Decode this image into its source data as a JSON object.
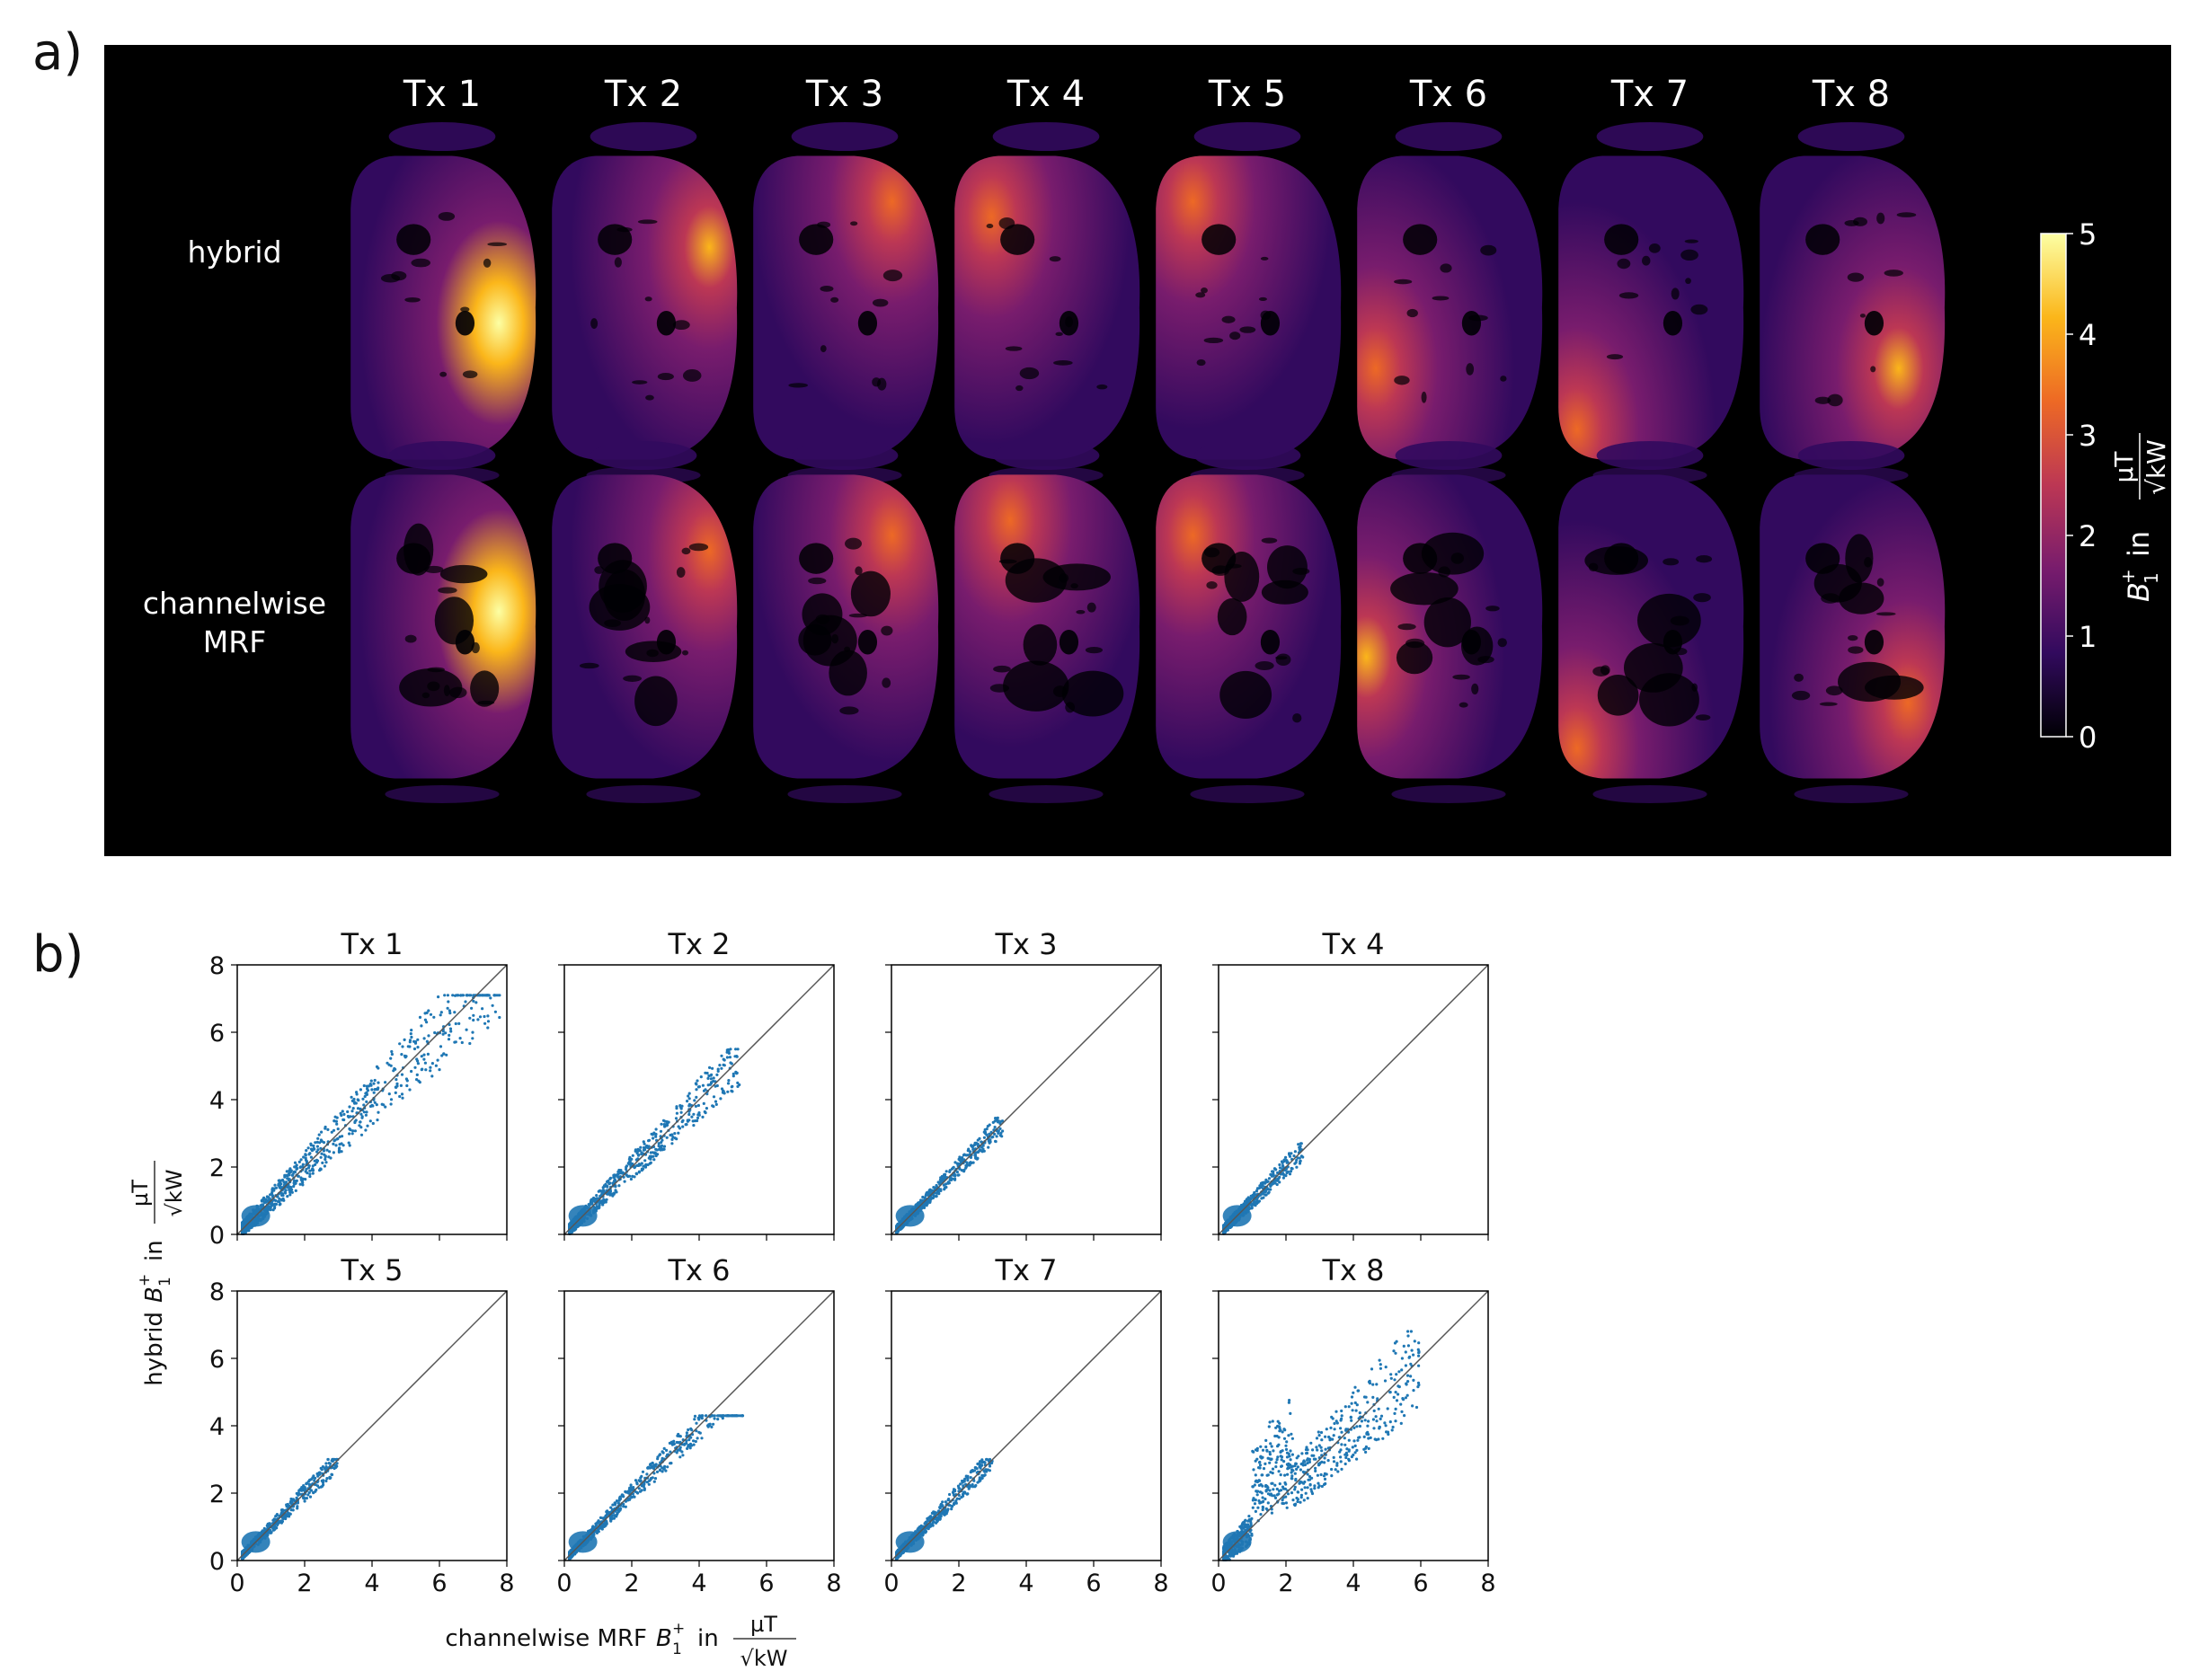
{
  "panel_a": {
    "label": "a)",
    "columns": [
      "Tx 1",
      "Tx 2",
      "Tx 3",
      "Tx 4",
      "Tx 5",
      "Tx 6",
      "Tx 7",
      "Tx 8"
    ],
    "rows": [
      {
        "line1": "hybrid",
        "line2": ""
      },
      {
        "line1": "channelwise",
        "line2": "MRF"
      }
    ],
    "colorbar": {
      "ticks": [
        "0",
        "1",
        "2",
        "3",
        "4",
        "5"
      ],
      "label_prefix": "B",
      "label_sub": "1",
      "label_sup": "+",
      "label_in": "in",
      "unit_num": "µT",
      "unit_den": "√kW",
      "range": [
        0,
        5
      ],
      "colormap": "inferno",
      "stops": [
        "#000004",
        "#320a5e",
        "#781c6d",
        "#bc3754",
        "#ed6925",
        "#fbb61a",
        "#fcffa4"
      ]
    },
    "maps": [
      {
        "row": 0,
        "col": 0,
        "hot": [
          0.8,
          0.55
        ],
        "level": 0.95
      },
      {
        "row": 0,
        "col": 1,
        "hot": [
          0.85,
          0.3
        ],
        "level": 0.7
      },
      {
        "row": 0,
        "col": 2,
        "hot": [
          0.75,
          0.15
        ],
        "level": 0.55
      },
      {
        "row": 0,
        "col": 3,
        "hot": [
          0.2,
          0.2
        ],
        "level": 0.45
      },
      {
        "row": 0,
        "col": 4,
        "hot": [
          0.2,
          0.15
        ],
        "level": 0.45
      },
      {
        "row": 0,
        "col": 5,
        "hot": [
          0.1,
          0.7
        ],
        "level": 0.55
      },
      {
        "row": 0,
        "col": 6,
        "hot": [
          0.1,
          0.9
        ],
        "level": 0.45
      },
      {
        "row": 0,
        "col": 7,
        "hot": [
          0.75,
          0.7
        ],
        "level": 0.6
      },
      {
        "row": 1,
        "col": 0,
        "hot": [
          0.8,
          0.45
        ],
        "level": 0.9
      },
      {
        "row": 1,
        "col": 1,
        "hot": [
          0.85,
          0.25
        ],
        "level": 0.55
      },
      {
        "row": 1,
        "col": 2,
        "hot": [
          0.75,
          0.2
        ],
        "level": 0.45
      },
      {
        "row": 1,
        "col": 3,
        "hot": [
          0.3,
          0.15
        ],
        "level": 0.45
      },
      {
        "row": 1,
        "col": 4,
        "hot": [
          0.2,
          0.2
        ],
        "level": 0.45
      },
      {
        "row": 1,
        "col": 5,
        "hot": [
          0.05,
          0.6
        ],
        "level": 0.6
      },
      {
        "row": 1,
        "col": 6,
        "hot": [
          0.1,
          0.9
        ],
        "level": 0.45
      },
      {
        "row": 1,
        "col": 7,
        "hot": [
          0.8,
          0.75
        ],
        "level": 0.45
      }
    ]
  },
  "panel_b": {
    "label": "b)",
    "ylabel_prefix": "hybrid",
    "xlabel_prefix": "channelwise MRF",
    "sym_B": "B",
    "sym_sub": "1",
    "sym_sup": "+",
    "sym_in": "in",
    "unit_num": "µT",
    "unit_den": "√kW",
    "tick_labels": [
      "0",
      "2",
      "4",
      "6",
      "8"
    ],
    "point_color": "#1f77b4",
    "chart_data": [
      {
        "type": "scatter",
        "title": "Tx 1",
        "xlim": [
          0,
          8
        ],
        "ylim": [
          0,
          8
        ],
        "xmax": 7.8,
        "ymax": 7.1,
        "spread": 0.45,
        "n": 900
      },
      {
        "type": "scatter",
        "title": "Tx 2",
        "xlim": [
          0,
          8
        ],
        "ylim": [
          0,
          8
        ],
        "xmax": 5.2,
        "ymax": 5.5,
        "spread": 0.35,
        "n": 700
      },
      {
        "type": "scatter",
        "title": "Tx 3",
        "xlim": [
          0,
          8
        ],
        "ylim": [
          0,
          8
        ],
        "xmax": 3.3,
        "ymax": 3.8,
        "spread": 0.25,
        "n": 600
      },
      {
        "type": "scatter",
        "title": "Tx 4",
        "xlim": [
          0,
          8
        ],
        "ylim": [
          0,
          8
        ],
        "xmax": 2.5,
        "ymax": 2.7,
        "spread": 0.3,
        "n": 500
      },
      {
        "type": "scatter",
        "title": "Tx 5",
        "xlim": [
          0,
          8
        ],
        "ylim": [
          0,
          8
        ],
        "xmax": 3.0,
        "ymax": 3.0,
        "spread": 0.25,
        "n": 600
      },
      {
        "type": "scatter",
        "title": "Tx 6",
        "xlim": [
          0,
          8
        ],
        "ylim": [
          0,
          8
        ],
        "xmax": 5.3,
        "ymax": 4.3,
        "spread": 0.25,
        "n": 650
      },
      {
        "type": "scatter",
        "title": "Tx 7",
        "xlim": [
          0,
          8
        ],
        "ylim": [
          0,
          8
        ],
        "xmax": 3.0,
        "ymax": 3.0,
        "spread": 0.25,
        "n": 550
      },
      {
        "type": "scatter",
        "title": "Tx 8",
        "xlim": [
          0,
          8
        ],
        "ylim": [
          0,
          8
        ],
        "xmax": 6.0,
        "ymax": 6.8,
        "spread": 0.6,
        "n": 900
      }
    ]
  }
}
